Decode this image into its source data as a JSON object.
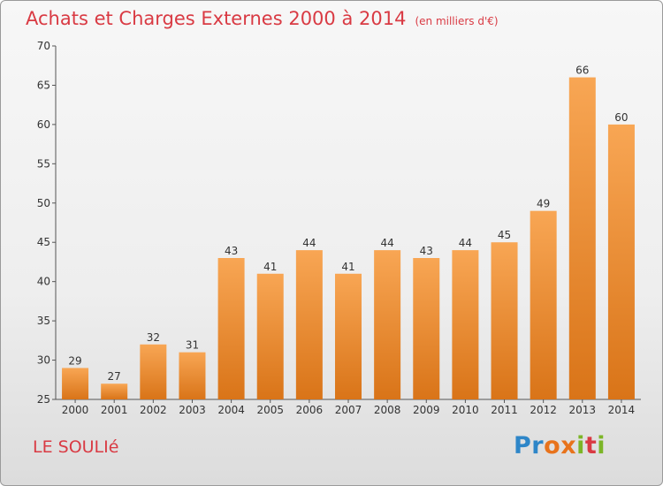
{
  "header": {
    "title": "Achats et Charges Externes 2000 à 2014",
    "unit": "(en milliers d'€)"
  },
  "footer": {
    "commune": "LE SOULIé",
    "logo_letters": [
      "P",
      "r",
      "o",
      "x",
      "i",
      "t",
      "i"
    ]
  },
  "colors": {
    "title": "#d93a43",
    "bar_top": "#f8a654",
    "bar_bottom": "#d97418",
    "logo": [
      "#2e86c8",
      "#2e86c8",
      "#e8731c",
      "#e8731c",
      "#7cb527",
      "#d93a43",
      "#7cb527"
    ]
  },
  "chart_data": {
    "type": "bar",
    "categories": [
      "2000",
      "2001",
      "2002",
      "2003",
      "2004",
      "2005",
      "2006",
      "2007",
      "2008",
      "2009",
      "2010",
      "2011",
      "2012",
      "2013",
      "2014"
    ],
    "values": [
      29,
      27,
      32,
      31,
      43,
      41,
      44,
      41,
      44,
      43,
      44,
      45,
      49,
      66,
      60
    ],
    "ylim": [
      25,
      70
    ],
    "yticks": [
      25,
      30,
      35,
      40,
      45,
      50,
      55,
      60,
      65,
      70
    ],
    "grid": false,
    "data_labels": true
  }
}
